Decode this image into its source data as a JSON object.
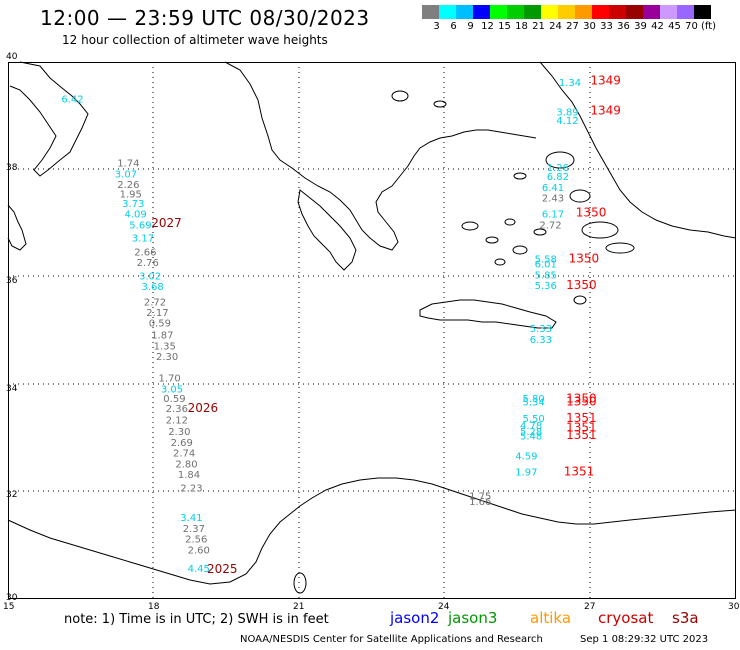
{
  "header": {
    "title": "12:00 — 23:59 UTC 08/30/2023",
    "subtitle": "12 hour collection of altimeter wave heights"
  },
  "legend": {
    "colors": [
      "#7f7f7f",
      "#00ffff",
      "#00bfff",
      "#0000ff",
      "#00ff00",
      "#00cc00",
      "#009900",
      "#ffff00",
      "#ffcc00",
      "#ff9900",
      "#ff0000",
      "#cc0000",
      "#990000",
      "#990099",
      "#cc99ff",
      "#9966ff",
      "#000000"
    ],
    "labels": [
      "3",
      "6",
      "9",
      "12",
      "15",
      "18",
      "21",
      "24",
      "27",
      "30",
      "33",
      "36",
      "39",
      "42",
      "45",
      "70",
      "(ft)"
    ]
  },
  "axes": {
    "lat_labels": [
      "40",
      "38",
      "36",
      "34",
      "32",
      "30"
    ],
    "lon_labels": [
      "15",
      "18",
      "21",
      "24",
      "27",
      "30"
    ]
  },
  "wave_heights": {
    "cyan": [
      {
        "v": "6.42",
        "lat": 39.25,
        "lon": 16.1
      },
      {
        "v": "3.07",
        "lat": 37.85,
        "lon": 17.2
      },
      {
        "v": "3.73",
        "lat": 37.3,
        "lon": 17.35
      },
      {
        "v": "4.09",
        "lat": 37.1,
        "lon": 17.4
      },
      {
        "v": "5.69",
        "lat": 36.9,
        "lon": 17.5
      },
      {
        "v": "3.17",
        "lat": 36.66,
        "lon": 17.55
      },
      {
        "v": "3.02",
        "lat": 35.95,
        "lon": 17.7
      },
      {
        "v": "3.68",
        "lat": 35.75,
        "lon": 17.75
      },
      {
        "v": "3.05",
        "lat": 33.85,
        "lon": 18.15
      },
      {
        "v": "3.41",
        "lat": 31.45,
        "lon": 18.55
      },
      {
        "v": "4.45",
        "lat": 30.5,
        "lon": 18.7
      },
      {
        "v": "1.34",
        "lat": 39.55,
        "lon": 26.35
      },
      {
        "v": "3.89",
        "lat": 39.0,
        "lon": 26.3
      },
      {
        "v": "4.12",
        "lat": 38.85,
        "lon": 26.3
      },
      {
        "v": "1.26",
        "lat": 37.97,
        "lon": 26.1
      },
      {
        "v": "6.82",
        "lat": 37.8,
        "lon": 26.1
      },
      {
        "v": "6.41",
        "lat": 37.6,
        "lon": 26.0
      },
      {
        "v": "6.17",
        "lat": 37.1,
        "lon": 26.0
      },
      {
        "v": "5.58",
        "lat": 36.27,
        "lon": 25.85
      },
      {
        "v": "6.01",
        "lat": 36.17,
        "lon": 25.85
      },
      {
        "v": "5.85",
        "lat": 35.97,
        "lon": 25.85
      },
      {
        "v": "5.36",
        "lat": 35.77,
        "lon": 25.85
      },
      {
        "v": "5.33",
        "lat": 34.97,
        "lon": 25.75
      },
      {
        "v": "6.33",
        "lat": 34.77,
        "lon": 25.75
      },
      {
        "v": "5.80",
        "lat": 33.67,
        "lon": 25.6
      },
      {
        "v": "5.34",
        "lat": 33.6,
        "lon": 25.6
      },
      {
        "v": "5.50",
        "lat": 33.3,
        "lon": 25.6
      },
      {
        "v": "4.78",
        "lat": 33.17,
        "lon": 25.55
      },
      {
        "v": "5.28",
        "lat": 33.05,
        "lon": 25.55
      },
      {
        "v": "5.48",
        "lat": 32.97,
        "lon": 25.55
      },
      {
        "v": "4.59",
        "lat": 32.6,
        "lon": 25.45
      },
      {
        "v": "1.97",
        "lat": 32.3,
        "lon": 25.45
      }
    ],
    "gray": [
      {
        "v": "1.74",
        "lat": 38.05,
        "lon": 17.25
      },
      {
        "v": "2.26",
        "lat": 37.65,
        "lon": 17.25
      },
      {
        "v": "1.95",
        "lat": 37.48,
        "lon": 17.3
      },
      {
        "v": "2.66",
        "lat": 36.4,
        "lon": 17.6
      },
      {
        "v": "2.76",
        "lat": 36.2,
        "lon": 17.65
      },
      {
        "v": "2.72",
        "lat": 35.47,
        "lon": 17.8
      },
      {
        "v": "2.17",
        "lat": 35.27,
        "lon": 17.85
      },
      {
        "v": "0.59",
        "lat": 35.07,
        "lon": 17.9
      },
      {
        "v": "1.87",
        "lat": 34.85,
        "lon": 17.95
      },
      {
        "v": "1.35",
        "lat": 34.65,
        "lon": 18.0
      },
      {
        "v": "2.30",
        "lat": 34.45,
        "lon": 18.05
      },
      {
        "v": "1.70",
        "lat": 34.05,
        "lon": 18.1
      },
      {
        "v": "0.59",
        "lat": 33.67,
        "lon": 18.2
      },
      {
        "v": "2.36",
        "lat": 33.48,
        "lon": 18.25
      },
      {
        "v": "2.12",
        "lat": 33.27,
        "lon": 18.25
      },
      {
        "v": "2.30",
        "lat": 33.05,
        "lon": 18.3
      },
      {
        "v": "2.69",
        "lat": 32.85,
        "lon": 18.35
      },
      {
        "v": "2.74",
        "lat": 32.65,
        "lon": 18.4
      },
      {
        "v": "2.80",
        "lat": 32.45,
        "lon": 18.45
      },
      {
        "v": "1.84",
        "lat": 32.25,
        "lon": 18.5
      },
      {
        "v": "2.23",
        "lat": 32.0,
        "lon": 18.55
      },
      {
        "v": "2.37",
        "lat": 31.25,
        "lon": 18.6
      },
      {
        "v": "2.56",
        "lat": 31.05,
        "lon": 18.65
      },
      {
        "v": "2.60",
        "lat": 30.85,
        "lon": 18.7
      },
      {
        "v": "2.43",
        "lat": 37.4,
        "lon": 26.0
      },
      {
        "v": "2.72",
        "lat": 36.9,
        "lon": 25.95
      },
      {
        "v": "1.75",
        "lat": 31.85,
        "lon": 24.5
      },
      {
        "v": "1.66",
        "lat": 31.75,
        "lon": 24.5
      }
    ]
  },
  "passes": [
    {
      "t": "2027",
      "lat": 36.93,
      "lon": 17.95,
      "color": "#990000"
    },
    {
      "t": "2026",
      "lat": 33.48,
      "lon": 18.7,
      "color": "#990000"
    },
    {
      "t": "2025",
      "lat": 30.48,
      "lon": 19.1,
      "color": "#990000"
    },
    {
      "t": "1349",
      "lat": 39.58,
      "lon": 27.0,
      "color": "#ff0000"
    },
    {
      "t": "1349",
      "lat": 39.02,
      "lon": 27.0,
      "color": "#ff0000"
    },
    {
      "t": "1350",
      "lat": 37.12,
      "lon": 26.7,
      "color": "#ff0000"
    },
    {
      "t": "1350",
      "lat": 36.27,
      "lon": 26.55,
      "color": "#ff0000"
    },
    {
      "t": "1350",
      "lat": 35.77,
      "lon": 26.5,
      "color": "#ff0000"
    },
    {
      "t": "1350",
      "lat": 33.66,
      "lon": 26.5,
      "color": "#ff0000"
    },
    {
      "t": "1350",
      "lat": 33.6,
      "lon": 26.5,
      "color": "#ff0000"
    },
    {
      "t": "1351",
      "lat": 33.3,
      "lon": 26.5,
      "color": "#ff0000"
    },
    {
      "t": "1351",
      "lat": 33.12,
      "lon": 26.5,
      "color": "#ff0000"
    },
    {
      "t": "1351",
      "lat": 32.98,
      "lon": 26.5,
      "color": "#ff0000"
    },
    {
      "t": "1351",
      "lat": 32.3,
      "lon": 26.45,
      "color": "#ff0000"
    }
  ],
  "footer": {
    "note": "note:  1) Time is in UTC;  2) SWH is in feet",
    "satellites": [
      {
        "name": "jason2",
        "color": "#0000ff"
      },
      {
        "name": "jason3",
        "color": "#009900"
      },
      {
        "name": "altika",
        "color": "#ff9900"
      },
      {
        "name": "cryosat",
        "color": "#cc0000"
      },
      {
        "name": "s3a",
        "color": "#990000"
      }
    ],
    "credit": "NOAA/NESDIS Center for Satellite Applications and Research",
    "timestamp": "Sep  1 08:29:32 UTC 2023"
  }
}
